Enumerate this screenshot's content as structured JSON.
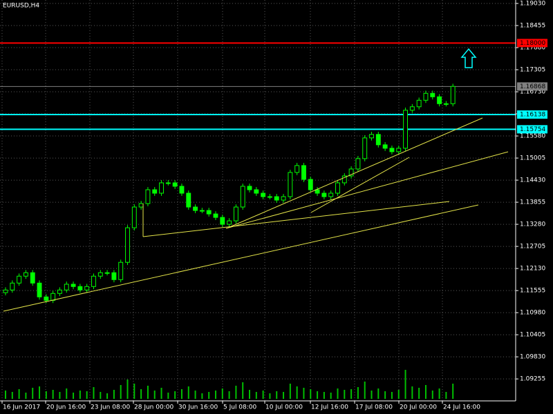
{
  "chart_data": {
    "type": "candlestick",
    "title": "EURUSD,H4",
    "color": "#00ff00",
    "volume_color": "#00c000",
    "grid": true,
    "ylim": [
      1.0906,
      1.1912
    ],
    "yticks": [
      {
        "value": 1.1903,
        "label": "1.19030"
      },
      {
        "value": 1.18455,
        "label": "1.18455"
      },
      {
        "value": 1.1788,
        "label": "1.17880"
      },
      {
        "value": 1.17305,
        "label": "1.17305"
      },
      {
        "value": 1.1673,
        "label": "1.16730"
      },
      {
        "value": 1.16155,
        "label": "1.16155"
      },
      {
        "value": 1.1558,
        "label": "1.15580"
      },
      {
        "value": 1.15005,
        "label": "1.15005"
      },
      {
        "value": 1.1443,
        "label": "1.14430"
      },
      {
        "value": 1.13855,
        "label": "1.13855"
      },
      {
        "value": 1.1328,
        "label": "1.13280"
      },
      {
        "value": 1.12705,
        "label": "1.12705"
      },
      {
        "value": 1.1213,
        "label": "1.12130"
      },
      {
        "value": 1.11555,
        "label": "1.11555"
      },
      {
        "value": 1.1098,
        "label": "1.10980"
      },
      {
        "value": 1.10405,
        "label": "1.10405"
      },
      {
        "value": 1.0983,
        "label": "1.09830"
      },
      {
        "value": 1.09255,
        "label": "1.09255"
      }
    ],
    "levels": [
      {
        "value": 1.18,
        "label": "1.18000",
        "color": "#ff0000"
      },
      {
        "value": 1.16868,
        "color": "#808080"
      },
      {
        "value": 1.16138,
        "color": "#00ffff"
      },
      {
        "value": 1.15754,
        "color": "#00ffff"
      }
    ],
    "time_labels": [
      "16 Jun 2017",
      "20 Jun 16:00",
      "23 Jun 08:00",
      "28 Jun 00:00",
      "30 Jun 16:00",
      "5 Jul 08:00",
      "10 Jul 00:00",
      "12 Jul 16:00",
      "17 Jul 08:00",
      "20 Jul 00:00",
      "24 Jul 16:00"
    ],
    "candles": [
      [
        1.115,
        1.1164,
        1.1143,
        1.1157
      ],
      [
        1.1157,
        1.1182,
        1.115,
        1.1175
      ],
      [
        1.1175,
        1.12,
        1.1168,
        1.1193
      ],
      [
        1.1193,
        1.1209,
        1.1186,
        1.1202
      ],
      [
        1.1202,
        1.1209,
        1.1168,
        1.1175
      ],
      [
        1.1175,
        1.1182,
        1.1132,
        1.1139
      ],
      [
        1.1139,
        1.1146,
        1.1123,
        1.113
      ],
      [
        1.113,
        1.1155,
        1.1123,
        1.1148
      ],
      [
        1.1148,
        1.1164,
        1.1141,
        1.1157
      ],
      [
        1.1157,
        1.1179,
        1.115,
        1.1172
      ],
      [
        1.1172,
        1.1179,
        1.1159,
        1.1166
      ],
      [
        1.1166,
        1.1173,
        1.115,
        1.1157
      ],
      [
        1.1157,
        1.1173,
        1.115,
        1.1166
      ],
      [
        1.1166,
        1.12,
        1.1159,
        1.1193
      ],
      [
        1.1193,
        1.1209,
        1.1186,
        1.1202
      ],
      [
        1.1202,
        1.1209,
        1.1195,
        1.1202
      ],
      [
        1.1202,
        1.1209,
        1.1177,
        1.1184
      ],
      [
        1.1184,
        1.1236,
        1.1177,
        1.1229
      ],
      [
        1.1229,
        1.1326,
        1.1222,
        1.1319
      ],
      [
        1.1319,
        1.138,
        1.1312,
        1.1373
      ],
      [
        1.1373,
        1.1389,
        1.1366,
        1.1382
      ],
      [
        1.1382,
        1.1425,
        1.1375,
        1.1418
      ],
      [
        1.1418,
        1.1425,
        1.1402,
        1.1409
      ],
      [
        1.1409,
        1.1443,
        1.1402,
        1.1436
      ],
      [
        1.1436,
        1.1443,
        1.1429,
        1.1436
      ],
      [
        1.1436,
        1.1443,
        1.142,
        1.1427
      ],
      [
        1.1427,
        1.1434,
        1.1402,
        1.1409
      ],
      [
        1.1409,
        1.1416,
        1.1366,
        1.1373
      ],
      [
        1.1373,
        1.138,
        1.1357,
        1.1364
      ],
      [
        1.1364,
        1.1371,
        1.1357,
        1.1364
      ],
      [
        1.1364,
        1.1371,
        1.1348,
        1.1355
      ],
      [
        1.1355,
        1.1362,
        1.1339,
        1.1346
      ],
      [
        1.1346,
        1.1353,
        1.1321,
        1.1328
      ],
      [
        1.1328,
        1.1344,
        1.1321,
        1.1337
      ],
      [
        1.1337,
        1.138,
        1.133,
        1.1373
      ],
      [
        1.1373,
        1.1434,
        1.1366,
        1.1427
      ],
      [
        1.1427,
        1.1434,
        1.1411,
        1.1418
      ],
      [
        1.1418,
        1.1425,
        1.1402,
        1.1409
      ],
      [
        1.1409,
        1.1416,
        1.1393,
        1.14
      ],
      [
        1.14,
        1.1407,
        1.1393,
        1.14
      ],
      [
        1.14,
        1.1407,
        1.1384,
        1.1391
      ],
      [
        1.1391,
        1.1407,
        1.1384,
        1.14
      ],
      [
        1.14,
        1.147,
        1.1393,
        1.1463
      ],
      [
        1.1463,
        1.1488,
        1.1456,
        1.1481
      ],
      [
        1.1481,
        1.1488,
        1.1438,
        1.1445
      ],
      [
        1.1445,
        1.1452,
        1.1411,
        1.1418
      ],
      [
        1.1418,
        1.1425,
        1.1402,
        1.1409
      ],
      [
        1.1409,
        1.1416,
        1.1393,
        1.14
      ],
      [
        1.14,
        1.1416,
        1.1393,
        1.1409
      ],
      [
        1.1409,
        1.1443,
        1.1402,
        1.1436
      ],
      [
        1.1436,
        1.1461,
        1.1429,
        1.1454
      ],
      [
        1.1454,
        1.1479,
        1.1447,
        1.1472
      ],
      [
        1.1472,
        1.1506,
        1.1465,
        1.1499
      ],
      [
        1.1499,
        1.156,
        1.1492,
        1.1553
      ],
      [
        1.1553,
        1.1569,
        1.1546,
        1.1562
      ],
      [
        1.1562,
        1.1569,
        1.1528,
        1.1535
      ],
      [
        1.1535,
        1.1542,
        1.1519,
        1.1526
      ],
      [
        1.1526,
        1.1533,
        1.151,
        1.1517
      ],
      [
        1.1517,
        1.1533,
        1.151,
        1.1526
      ],
      [
        1.1526,
        1.1632,
        1.1519,
        1.1625
      ],
      [
        1.1625,
        1.1641,
        1.1618,
        1.1634
      ],
      [
        1.1634,
        1.1658,
        1.1627,
        1.1651
      ],
      [
        1.1651,
        1.1676,
        1.1644,
        1.1669
      ],
      [
        1.1669,
        1.1676,
        1.1653,
        1.166
      ],
      [
        1.166,
        1.1667,
        1.1635,
        1.1642
      ],
      [
        1.1642,
        1.1649,
        1.1635,
        1.1642
      ],
      [
        1.1642,
        1.1694,
        1.1635,
        1.1687
      ]
    ],
    "volumes": [
      12,
      10,
      14,
      9,
      16,
      18,
      11,
      13,
      10,
      15,
      9,
      12,
      11,
      17,
      10,
      8,
      13,
      20,
      28,
      22,
      14,
      19,
      12,
      16,
      9,
      11,
      14,
      18,
      12,
      8,
      10,
      12,
      15,
      11,
      19,
      24,
      13,
      10,
      12,
      8,
      11,
      10,
      22,
      18,
      16,
      14,
      11,
      10,
      9,
      15,
      13,
      14,
      17,
      25,
      12,
      15,
      11,
      10,
      13,
      42,
      18,
      16,
      20,
      12,
      15,
      10,
      22
    ],
    "vlim": [
      0,
      60
    ]
  }
}
